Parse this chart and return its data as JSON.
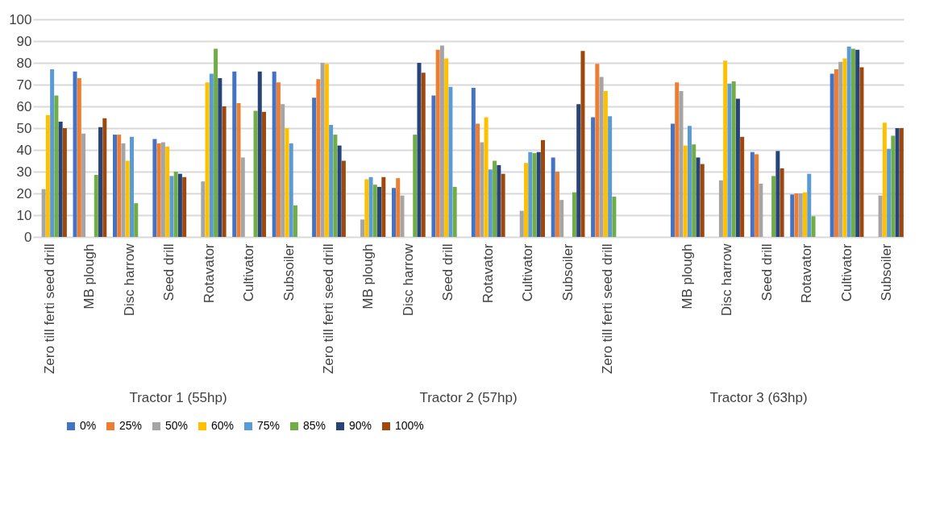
{
  "chart_data": {
    "type": "bar",
    "categories": [
      "Zero till ferti seed drill",
      "MB plough",
      "Disc harrow",
      "Seed drill",
      "Rotavator",
      "Cultivator",
      "Subsoiler",
      "Zero till ferti seed drill",
      "MB plough",
      "Disc harrow",
      "Seed drill",
      "Rotavator",
      "Cultivator",
      "Subsoiler",
      "Zero till ferti seed drill",
      null,
      "MB plough",
      "Disc harrow",
      "Seed drill",
      "Rotavator",
      "Cultivator",
      "Subsoiler"
    ],
    "series": [
      {
        "name": "0%",
        "color": "#4472c4",
        "values": [
          null,
          76,
          47,
          45,
          null,
          76,
          76,
          64,
          null,
          22.5,
          65,
          68.5,
          null,
          36.5,
          55,
          null,
          52,
          null,
          39,
          19.5,
          75,
          null
        ]
      },
      {
        "name": "25%",
        "color": "#ed7d31",
        "values": [
          null,
          73,
          47,
          43,
          null,
          61.5,
          71,
          72.5,
          null,
          27,
          86,
          52,
          null,
          30,
          79.5,
          null,
          71,
          null,
          38,
          20,
          77,
          null
        ]
      },
      {
        "name": "50%",
        "color": "#a5a5a5",
        "values": [
          22,
          47.5,
          43,
          43.5,
          25.5,
          36.5,
          61,
          80,
          8,
          19,
          88,
          43.5,
          12,
          17,
          73.5,
          null,
          67,
          26,
          24.5,
          20,
          80.5,
          19
        ]
      },
      {
        "name": "60%",
        "color": "#ffc000",
        "values": [
          56,
          null,
          35,
          41.5,
          71,
          null,
          50,
          79.5,
          26.5,
          null,
          82,
          55,
          34,
          null,
          67,
          null,
          42,
          81,
          null,
          20.5,
          82,
          52.5
        ]
      },
      {
        "name": "75%",
        "color": "#5b9bd5",
        "values": [
          77,
          null,
          46,
          28,
          75,
          null,
          43,
          51.5,
          27.5,
          null,
          69,
          31,
          39,
          null,
          55.5,
          null,
          51,
          70.5,
          null,
          29,
          87.5,
          40.5
        ]
      },
      {
        "name": "85%",
        "color": "#70ad47",
        "values": [
          65,
          28.5,
          15.5,
          30,
          86.5,
          58,
          14.5,
          47,
          24,
          47,
          23,
          35,
          38.5,
          20.5,
          18.5,
          null,
          42.5,
          71.5,
          28,
          9.5,
          86.5,
          46.5
        ]
      },
      {
        "name": "90%",
        "color": "#264478",
        "values": [
          53,
          50.5,
          null,
          29,
          73,
          76,
          null,
          42,
          23,
          80,
          null,
          33,
          39,
          61,
          null,
          null,
          36.5,
          63.5,
          39.5,
          null,
          86,
          50
        ]
      },
      {
        "name": "100%",
        "color": "#9e480e",
        "values": [
          50,
          54.5,
          null,
          27.5,
          60,
          57.5,
          null,
          35,
          27.5,
          75.5,
          null,
          29,
          44.5,
          85.5,
          null,
          null,
          33.5,
          46,
          31.5,
          null,
          78,
          50
        ]
      }
    ],
    "ylim": [
      0,
      100
    ],
    "yticks": [
      0,
      10,
      20,
      30,
      40,
      50,
      60,
      70,
      80,
      90,
      100
    ],
    "grid": "y",
    "legend": "bottom",
    "annotations": [
      "Tractor 1 (55hp)",
      "Tractor 2 (57hp)",
      "Tractor 3 (63hp)"
    ]
  }
}
